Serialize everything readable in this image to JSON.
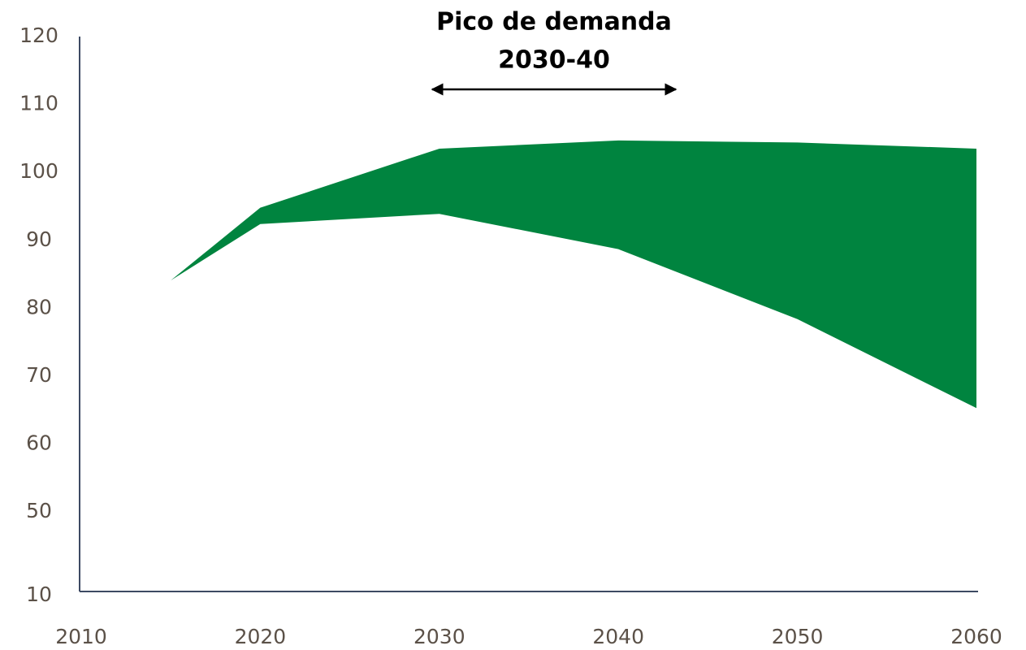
{
  "chart_data": {
    "type": "area_range",
    "annotation": [
      "Pico de demanda",
      "2030-40"
    ],
    "x": [
      2015,
      2020,
      2030,
      2040,
      2050,
      2060
    ],
    "upper": [
      84.1,
      94.8,
      103.5,
      104.7,
      104.4,
      103.5
    ],
    "lower": [
      84.1,
      92.4,
      93.9,
      88.7,
      78.4,
      65.3
    ],
    "color": "#00843f",
    "xlim": [
      2010,
      2060
    ],
    "xticks": [
      2010,
      2020,
      2030,
      2040,
      2050,
      2060
    ],
    "ylim": [
      10,
      120
    ],
    "yticks": [
      120,
      110,
      100,
      90,
      80,
      70,
      60,
      50,
      10
    ]
  }
}
